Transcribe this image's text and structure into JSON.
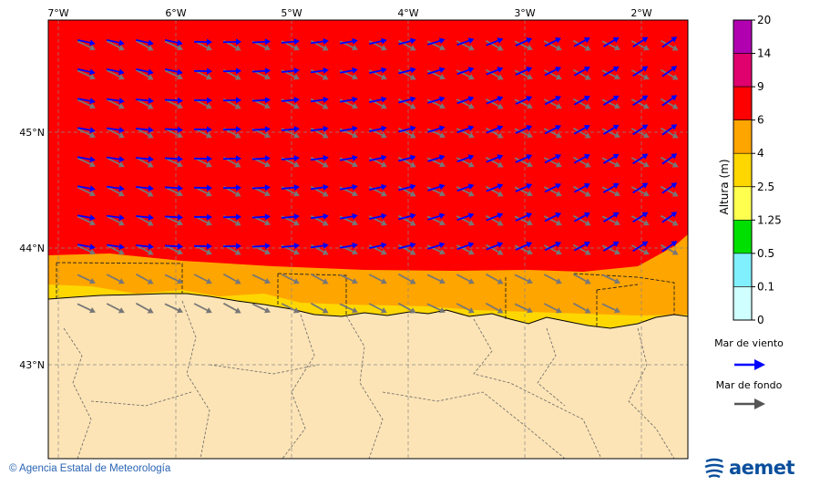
{
  "map": {
    "lon_labels": [
      "7°W",
      "6°W",
      "5°W",
      "4°W",
      "3°W",
      "2°W"
    ],
    "lat_labels": [
      "45°N",
      "44°N",
      "43°N"
    ]
  },
  "colorbar": {
    "title": "Altura (m)",
    "ticks": [
      "20",
      "14",
      "9",
      "6",
      "4",
      "2.5",
      "1.25",
      "0.5",
      "0.1",
      "0"
    ],
    "colors": [
      "#b000b0",
      "#e0006e",
      "#ff0000",
      "#ffa500",
      "#ffd700",
      "#ffff50",
      "#00e000",
      "#80f0ff",
      "#d0ffff"
    ]
  },
  "legend": {
    "wind_sea_label": "Mar de viento",
    "swell_label": "Mar de fondo",
    "wind_sea_color": "#0000ff",
    "swell_color": "#777777"
  },
  "footer": {
    "copyright": "© Agencia Estatal de Meteorología",
    "logo_text": "aemet"
  }
}
